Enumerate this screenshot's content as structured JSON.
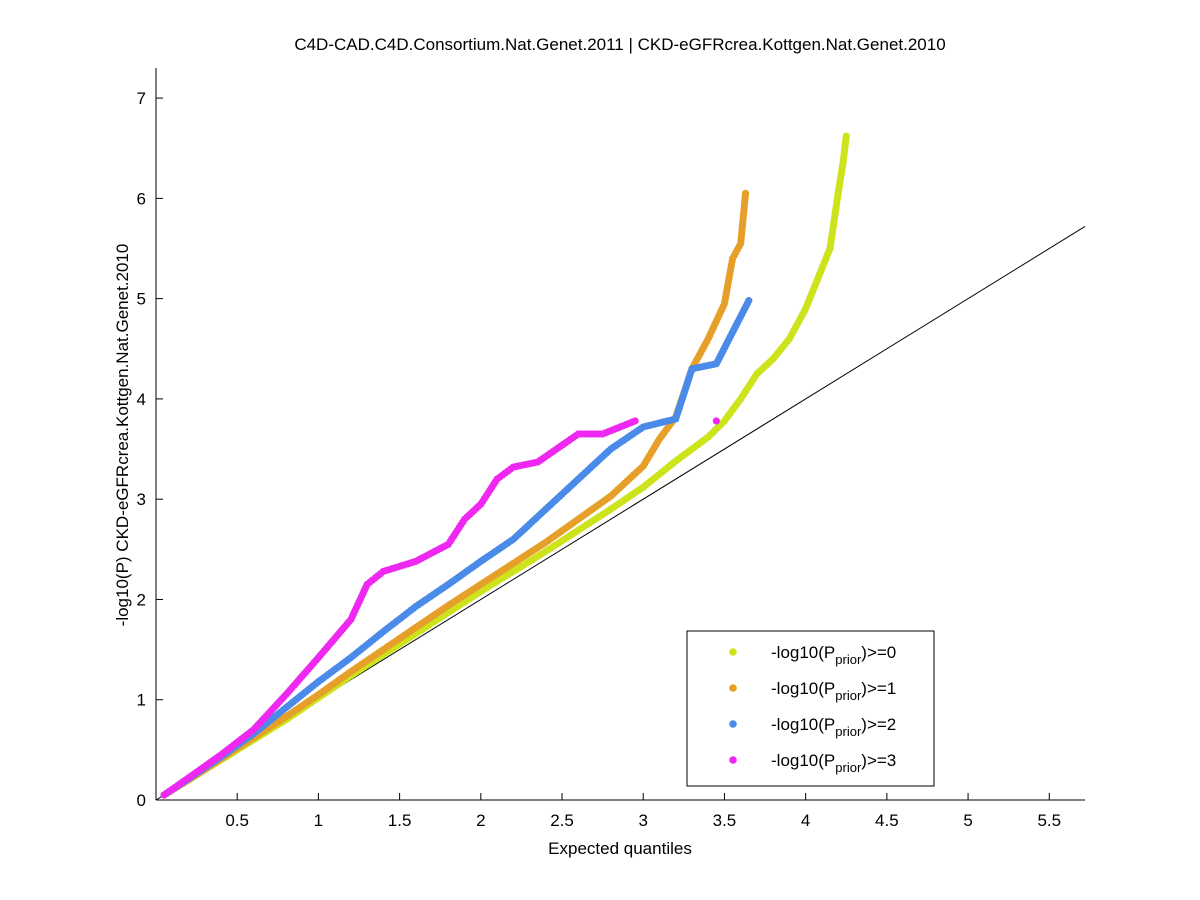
{
  "chart_data": {
    "type": "scatter",
    "title": "C4D-CAD.C4D.Consortium.Nat.Genet.2011 | CKD-eGFRcrea.Kottgen.Nat.Genet.2010",
    "xlabel": "Expected quantiles",
    "ylabel": "-log10(P) CKD-eGFRcrea.Kottgen.Nat.Genet.2010",
    "xlim": [
      0,
      5.72
    ],
    "ylim": [
      0,
      7.3
    ],
    "x_ticks": [
      0.5,
      1,
      1.5,
      2,
      2.5,
      3,
      3.5,
      4,
      4.5,
      5,
      5.5
    ],
    "x_tick_labels": [
      "0.5",
      "1",
      "1.5",
      "2",
      "2.5",
      "3",
      "3.5",
      "4",
      "4.5",
      "5",
      "5.5"
    ],
    "y_ticks": [
      0,
      1,
      2,
      3,
      4,
      5,
      6,
      7
    ],
    "y_tick_labels": [
      "0",
      "1",
      "2",
      "3",
      "4",
      "5",
      "6",
      "7"
    ],
    "grid": false,
    "legend_position": "bottom-right",
    "reference_line": {
      "type": "y=x",
      "color": "#000000"
    },
    "series": [
      {
        "legend_prefix": "-log10(P",
        "legend_sub": "prior",
        "legend_suffix": ")>=0",
        "color": "#cde31c",
        "points": [
          [
            0.05,
            0.05
          ],
          [
            0.2,
            0.2
          ],
          [
            0.4,
            0.4
          ],
          [
            0.6,
            0.6
          ],
          [
            0.8,
            0.8
          ],
          [
            1.0,
            1.02
          ],
          [
            1.2,
            1.24
          ],
          [
            1.4,
            1.45
          ],
          [
            1.6,
            1.66
          ],
          [
            1.8,
            1.87
          ],
          [
            2.0,
            2.08
          ],
          [
            2.2,
            2.28
          ],
          [
            2.4,
            2.48
          ],
          [
            2.6,
            2.69
          ],
          [
            2.8,
            2.9
          ],
          [
            3.0,
            3.12
          ],
          [
            3.2,
            3.38
          ],
          [
            3.4,
            3.62
          ],
          [
            3.5,
            3.78
          ],
          [
            3.6,
            4.0
          ],
          [
            3.7,
            4.25
          ],
          [
            3.8,
            4.4
          ],
          [
            3.9,
            4.6
          ],
          [
            4.0,
            4.9
          ],
          [
            4.1,
            5.3
          ],
          [
            4.15,
            5.5
          ],
          [
            4.2,
            6.05
          ],
          [
            4.23,
            6.35
          ],
          [
            4.25,
            6.62
          ]
        ]
      },
      {
        "legend_prefix": "-log10(P",
        "legend_sub": "prior",
        "legend_suffix": ")>=1",
        "color": "#e6a02a",
        "points": [
          [
            0.05,
            0.05
          ],
          [
            0.2,
            0.2
          ],
          [
            0.4,
            0.41
          ],
          [
            0.6,
            0.62
          ],
          [
            0.8,
            0.83
          ],
          [
            1.0,
            1.05
          ],
          [
            1.2,
            1.28
          ],
          [
            1.4,
            1.5
          ],
          [
            1.6,
            1.72
          ],
          [
            1.8,
            1.94
          ],
          [
            2.0,
            2.15
          ],
          [
            2.2,
            2.36
          ],
          [
            2.4,
            2.57
          ],
          [
            2.6,
            2.8
          ],
          [
            2.8,
            3.03
          ],
          [
            3.0,
            3.33
          ],
          [
            3.1,
            3.6
          ],
          [
            3.2,
            3.82
          ],
          [
            3.3,
            4.3
          ],
          [
            3.4,
            4.6
          ],
          [
            3.5,
            4.95
          ],
          [
            3.55,
            5.4
          ],
          [
            3.6,
            5.55
          ],
          [
            3.63,
            6.05
          ]
        ]
      },
      {
        "legend_prefix": "-log10(P",
        "legend_sub": "prior",
        "legend_suffix": ")>=2",
        "color": "#4a8ae8",
        "points": [
          [
            0.05,
            0.05
          ],
          [
            0.2,
            0.21
          ],
          [
            0.4,
            0.43
          ],
          [
            0.6,
            0.66
          ],
          [
            0.8,
            0.92
          ],
          [
            1.0,
            1.18
          ],
          [
            1.2,
            1.42
          ],
          [
            1.4,
            1.68
          ],
          [
            1.6,
            1.93
          ],
          [
            1.8,
            2.15
          ],
          [
            2.0,
            2.38
          ],
          [
            2.2,
            2.6
          ],
          [
            2.4,
            2.9
          ],
          [
            2.6,
            3.2
          ],
          [
            2.8,
            3.5
          ],
          [
            3.0,
            3.72
          ],
          [
            3.2,
            3.8
          ],
          [
            3.3,
            4.3
          ],
          [
            3.45,
            4.35
          ],
          [
            3.65,
            4.98
          ]
        ]
      },
      {
        "legend_prefix": "-log10(P",
        "legend_sub": "prior",
        "legend_suffix": ")>=3",
        "color": "#ee28f0",
        "points": [
          [
            0.05,
            0.05
          ],
          [
            0.2,
            0.22
          ],
          [
            0.4,
            0.45
          ],
          [
            0.6,
            0.7
          ],
          [
            0.8,
            1.05
          ],
          [
            1.0,
            1.42
          ],
          [
            1.2,
            1.8
          ],
          [
            1.3,
            2.15
          ],
          [
            1.4,
            2.28
          ],
          [
            1.6,
            2.38
          ],
          [
            1.8,
            2.55
          ],
          [
            1.9,
            2.8
          ],
          [
            2.0,
            2.95
          ],
          [
            2.1,
            3.2
          ],
          [
            2.2,
            3.32
          ],
          [
            2.35,
            3.37
          ],
          [
            2.6,
            3.65
          ],
          [
            2.75,
            3.65
          ],
          [
            2.95,
            3.78
          ],
          [
            3.45,
            3.78
          ]
        ]
      }
    ]
  }
}
